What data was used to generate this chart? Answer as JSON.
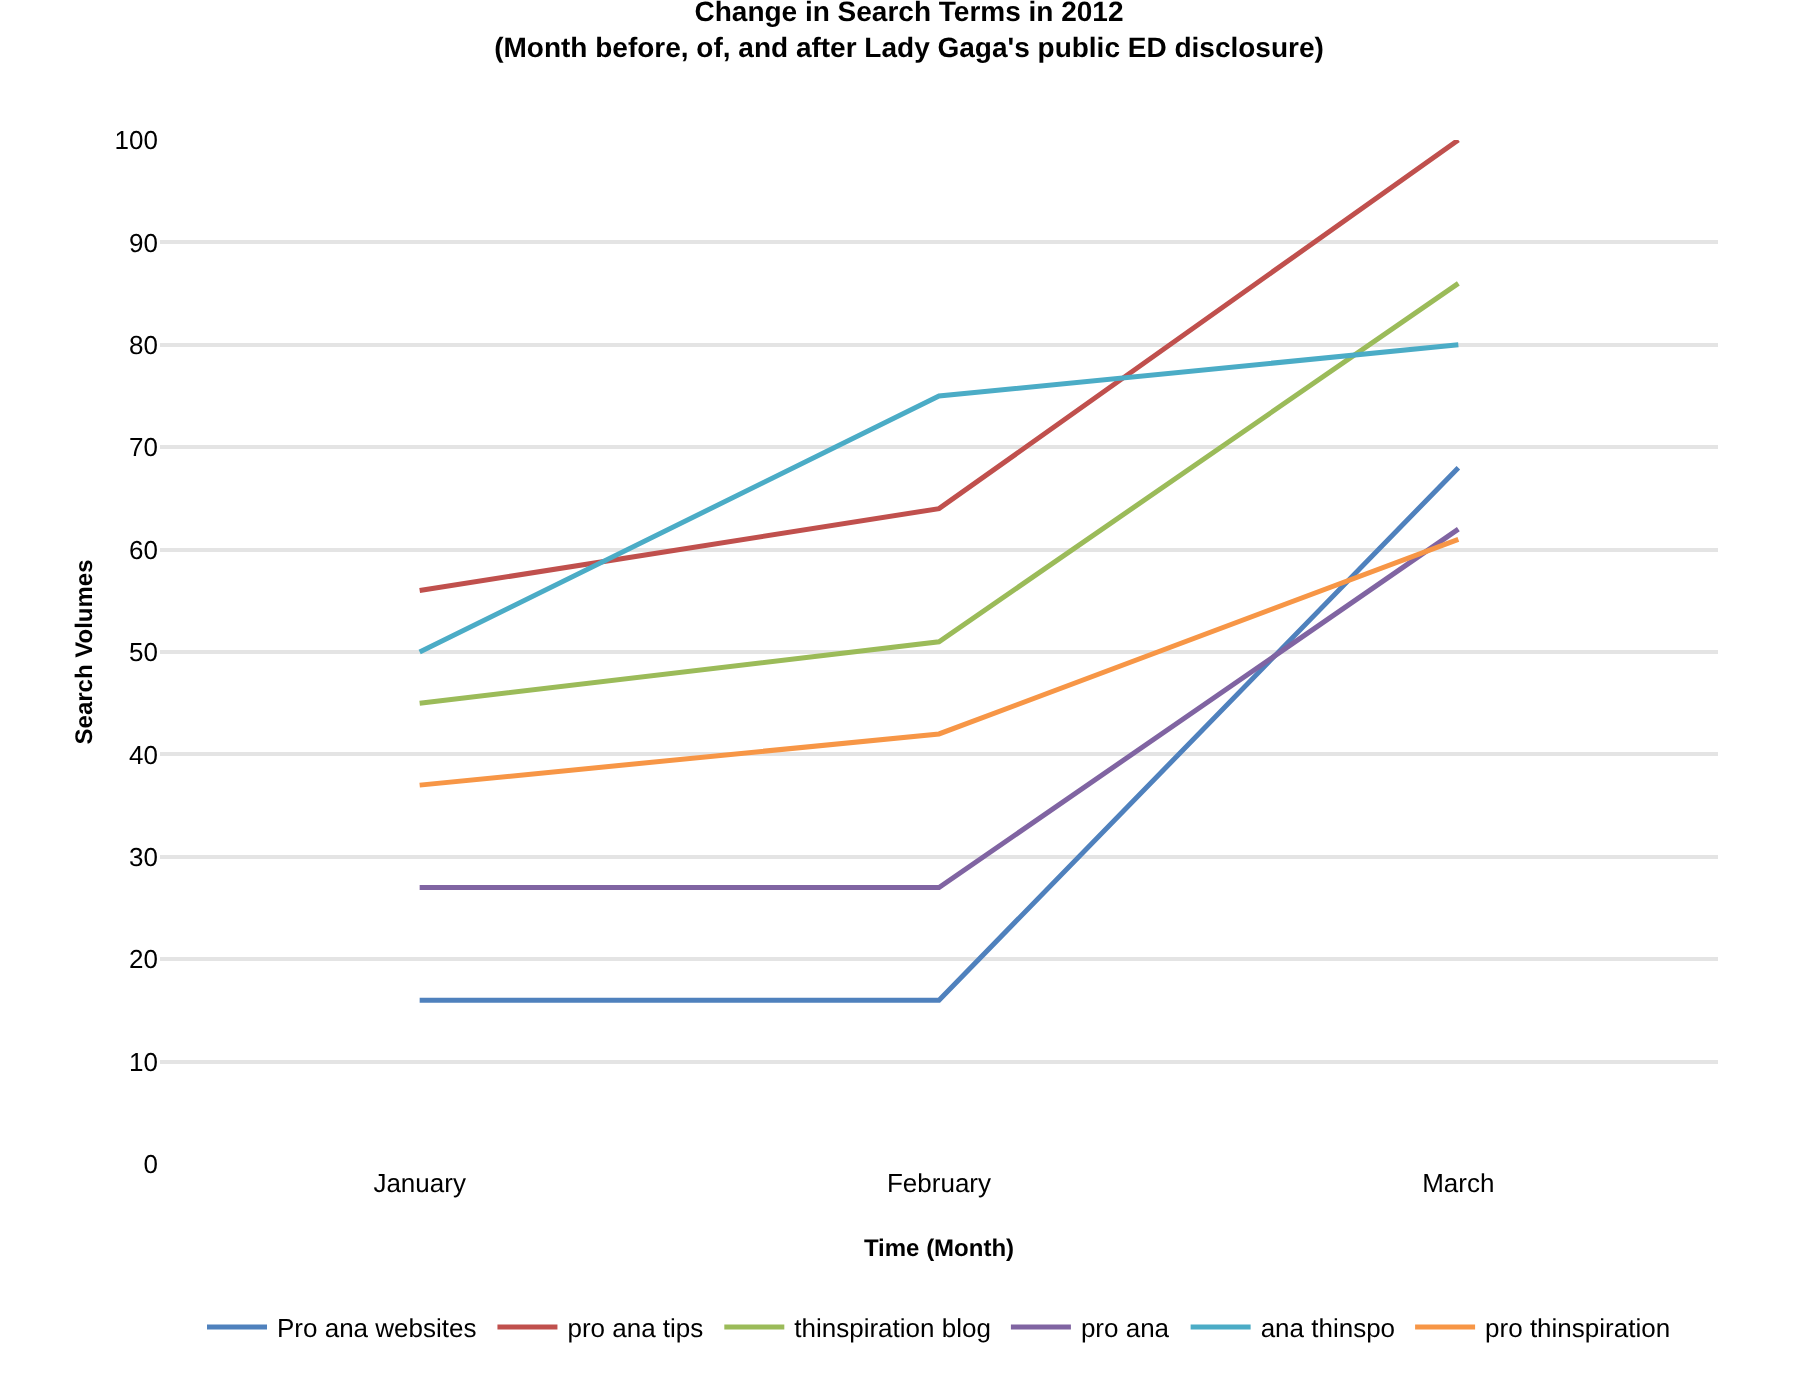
{
  "chart_data": {
    "type": "line",
    "title": "Change in Search Terms in 2012",
    "subtitle": "(Month before, of, and after Lady Gaga's public ED disclosure)",
    "xlabel": "Time (Month)",
    "ylabel": "Search Volumes",
    "categories": [
      "January",
      "February",
      "March"
    ],
    "series": [
      {
        "name": "Pro ana websites",
        "color": "#4f81bd",
        "values": [
          16,
          16,
          68
        ]
      },
      {
        "name": "pro ana tips",
        "color": "#c0504d",
        "values": [
          56,
          64,
          100
        ]
      },
      {
        "name": "thinspiration blog",
        "color": "#9bbb59",
        "values": [
          45,
          51,
          86
        ]
      },
      {
        "name": "pro ana",
        "color": "#8064a2",
        "values": [
          27,
          27,
          62
        ]
      },
      {
        "name": "ana thinspo",
        "color": "#4bacc6",
        "values": [
          50,
          75,
          80
        ]
      },
      {
        "name": "pro thinspiration",
        "color": "#f79646",
        "values": [
          37,
          42,
          61
        ]
      }
    ],
    "ylim": [
      0,
      100
    ],
    "yticks": [
      0,
      10,
      20,
      30,
      40,
      50,
      60,
      70,
      80,
      90,
      100
    ],
    "grid": "y",
    "legend": "bottom",
    "marker": "none",
    "line_style": "solid"
  }
}
